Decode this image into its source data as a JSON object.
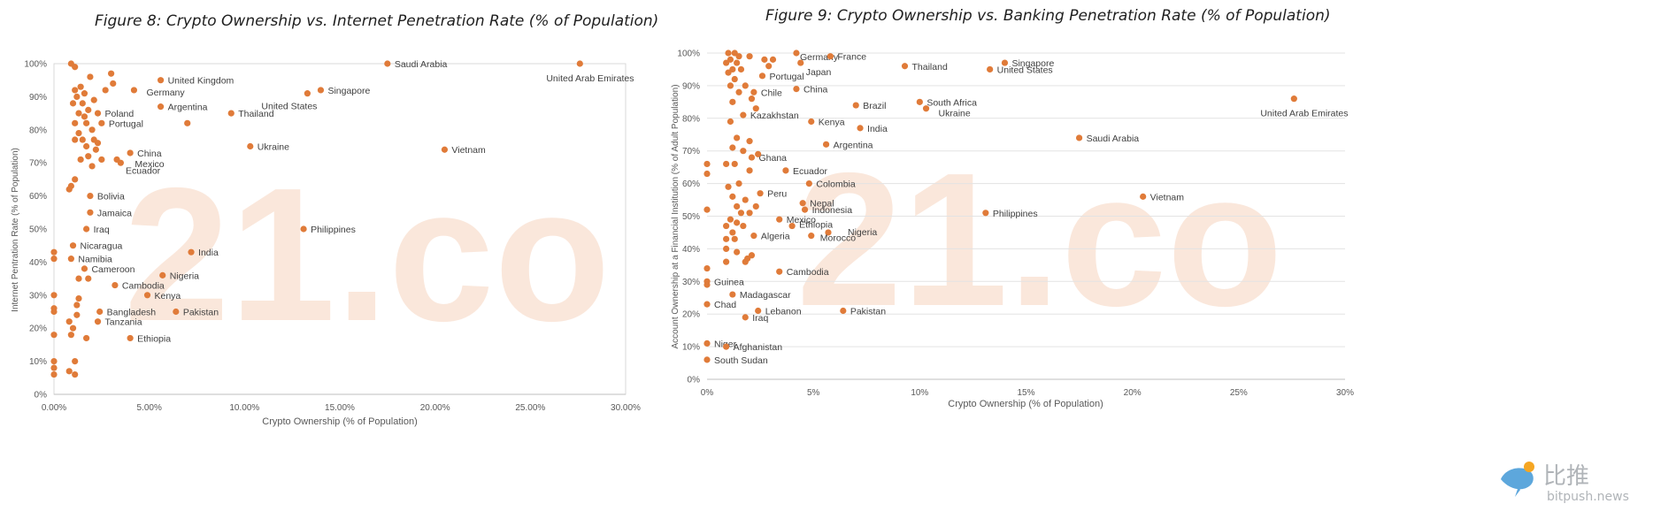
{
  "chart_data": [
    {
      "type": "scatter",
      "title": "Figure 8: Crypto Ownership vs. Internet Penetration Rate (% of Population)",
      "xlabel": "Crypto Ownership (% of Population)",
      "ylabel": "Internet Pentration Rate (% of Population)",
      "xlim": [
        0,
        30
      ],
      "ylim": [
        0,
        100
      ],
      "x_ticks": [
        0,
        5,
        10,
        15,
        20,
        25,
        30
      ],
      "x_tick_labels": [
        "0.00%",
        "5.00%",
        "10.00%",
        "15.00%",
        "20.00%",
        "25.00%",
        "30.00%"
      ],
      "y_ticks": [
        0,
        10,
        20,
        30,
        40,
        50,
        60,
        70,
        80,
        90,
        100
      ],
      "y_tick_labels": [
        "0%",
        "10%",
        "20%",
        "30%",
        "40%",
        "50%",
        "60%",
        "70%",
        "80%",
        "90%",
        "100%"
      ],
      "grid": "none",
      "color": "#e07b39",
      "watermark": "21.co",
      "points": [
        {
          "x": 27.6,
          "y": 100,
          "label": "United Arab Emirates"
        },
        {
          "x": 17.5,
          "y": 100,
          "label": "Saudi Arabia"
        },
        {
          "x": 14.0,
          "y": 92,
          "label": "Singapore"
        },
        {
          "x": 13.3,
          "y": 91,
          "label": "United States"
        },
        {
          "x": 9.3,
          "y": 85,
          "label": "Thailand"
        },
        {
          "x": 5.6,
          "y": 95,
          "label": "United Kingdom"
        },
        {
          "x": 4.2,
          "y": 92,
          "label": "Germany"
        },
        {
          "x": 5.6,
          "y": 87,
          "label": "Argentina"
        },
        {
          "x": 2.3,
          "y": 85,
          "label": "Poland"
        },
        {
          "x": 2.5,
          "y": 82,
          "label": "Portugal"
        },
        {
          "x": 10.3,
          "y": 75,
          "label": "Ukraine"
        },
        {
          "x": 20.5,
          "y": 74,
          "label": "Vietnam"
        },
        {
          "x": 4.0,
          "y": 73,
          "label": "China"
        },
        {
          "x": 3.5,
          "y": 70,
          "label": "Mexico"
        },
        {
          "x": 3.3,
          "y": 71,
          "label": "Ecuador"
        },
        {
          "x": 1.9,
          "y": 60,
          "label": "Bolivia"
        },
        {
          "x": 1.9,
          "y": 55,
          "label": "Jamaica"
        },
        {
          "x": 1.7,
          "y": 50,
          "label": "Iraq"
        },
        {
          "x": 13.1,
          "y": 50,
          "label": "Philippines"
        },
        {
          "x": 1.0,
          "y": 45,
          "label": "Nicaragua"
        },
        {
          "x": 7.2,
          "y": 43,
          "label": "India"
        },
        {
          "x": 0.9,
          "y": 41,
          "label": "Namibia"
        },
        {
          "x": 1.6,
          "y": 38,
          "label": "Cameroon"
        },
        {
          "x": 5.7,
          "y": 36,
          "label": "Nigeria"
        },
        {
          "x": 3.2,
          "y": 33,
          "label": "Cambodia"
        },
        {
          "x": 4.9,
          "y": 30,
          "label": "Kenya"
        },
        {
          "x": 2.4,
          "y": 25,
          "label": "Bangladesh"
        },
        {
          "x": 6.4,
          "y": 25,
          "label": "Pakistan"
        },
        {
          "x": 2.3,
          "y": 22,
          "label": "Tanzania"
        },
        {
          "x": 4.0,
          "y": 17,
          "label": "Ethiopia"
        },
        {
          "x": 0.9,
          "y": 100,
          "label": ""
        },
        {
          "x": 1.1,
          "y": 99,
          "label": ""
        },
        {
          "x": 1.9,
          "y": 96,
          "label": ""
        },
        {
          "x": 3.0,
          "y": 97,
          "label": ""
        },
        {
          "x": 3.1,
          "y": 94,
          "label": ""
        },
        {
          "x": 2.7,
          "y": 92,
          "label": ""
        },
        {
          "x": 1.4,
          "y": 93,
          "label": ""
        },
        {
          "x": 1.1,
          "y": 92,
          "label": ""
        },
        {
          "x": 1.6,
          "y": 91,
          "label": ""
        },
        {
          "x": 1.2,
          "y": 90,
          "label": ""
        },
        {
          "x": 2.1,
          "y": 89,
          "label": ""
        },
        {
          "x": 1.5,
          "y": 88,
          "label": ""
        },
        {
          "x": 1.0,
          "y": 88,
          "label": ""
        },
        {
          "x": 1.8,
          "y": 86,
          "label": ""
        },
        {
          "x": 1.3,
          "y": 85,
          "label": ""
        },
        {
          "x": 1.6,
          "y": 84,
          "label": ""
        },
        {
          "x": 1.1,
          "y": 82,
          "label": ""
        },
        {
          "x": 1.7,
          "y": 82,
          "label": ""
        },
        {
          "x": 2.0,
          "y": 80,
          "label": ""
        },
        {
          "x": 1.3,
          "y": 79,
          "label": ""
        },
        {
          "x": 7.0,
          "y": 82,
          "label": ""
        },
        {
          "x": 1.5,
          "y": 77,
          "label": ""
        },
        {
          "x": 1.1,
          "y": 77,
          "label": ""
        },
        {
          "x": 2.1,
          "y": 77,
          "label": ""
        },
        {
          "x": 2.3,
          "y": 76,
          "label": ""
        },
        {
          "x": 1.7,
          "y": 75,
          "label": ""
        },
        {
          "x": 2.2,
          "y": 74,
          "label": ""
        },
        {
          "x": 1.8,
          "y": 72,
          "label": ""
        },
        {
          "x": 1.4,
          "y": 71,
          "label": ""
        },
        {
          "x": 2.5,
          "y": 71,
          "label": ""
        },
        {
          "x": 2.0,
          "y": 69,
          "label": ""
        },
        {
          "x": 1.1,
          "y": 65,
          "label": ""
        },
        {
          "x": 0.9,
          "y": 63,
          "label": ""
        },
        {
          "x": 0.8,
          "y": 62,
          "label": ""
        },
        {
          "x": 0.0,
          "y": 43,
          "label": ""
        },
        {
          "x": 0.0,
          "y": 41,
          "label": ""
        },
        {
          "x": 1.8,
          "y": 35,
          "label": ""
        },
        {
          "x": 1.3,
          "y": 35,
          "label": ""
        },
        {
          "x": 0.0,
          "y": 30,
          "label": ""
        },
        {
          "x": 1.3,
          "y": 29,
          "label": ""
        },
        {
          "x": 1.2,
          "y": 27,
          "label": ""
        },
        {
          "x": 0.0,
          "y": 26,
          "label": ""
        },
        {
          "x": 0.0,
          "y": 25,
          "label": ""
        },
        {
          "x": 1.2,
          "y": 24,
          "label": ""
        },
        {
          "x": 0.8,
          "y": 22,
          "label": ""
        },
        {
          "x": 1.0,
          "y": 20,
          "label": ""
        },
        {
          "x": 0.0,
          "y": 18,
          "label": ""
        },
        {
          "x": 0.9,
          "y": 18,
          "label": ""
        },
        {
          "x": 1.7,
          "y": 17,
          "label": ""
        },
        {
          "x": 0.0,
          "y": 10,
          "label": ""
        },
        {
          "x": 1.1,
          "y": 10,
          "label": ""
        },
        {
          "x": 0.0,
          "y": 8,
          "label": ""
        },
        {
          "x": 0.8,
          "y": 7,
          "label": ""
        },
        {
          "x": 1.1,
          "y": 6,
          "label": ""
        },
        {
          "x": 0.0,
          "y": 6,
          "label": ""
        }
      ]
    },
    {
      "type": "scatter",
      "title": "Figure 9: Crypto Ownership vs. Banking Penetration Rate (% of Population)",
      "xlabel": "Crypto Ownership (% of Population)",
      "ylabel": "Account Ownership at a Financial Institution (% of Adult Population)",
      "xlim": [
        0,
        30
      ],
      "ylim": [
        0,
        100
      ],
      "x_ticks": [
        0,
        5,
        10,
        15,
        20,
        25,
        30
      ],
      "x_tick_labels": [
        "0%",
        "5%",
        "10%",
        "15%",
        "20%",
        "25%",
        "30%"
      ],
      "y_ticks": [
        0,
        10,
        20,
        30,
        40,
        50,
        60,
        70,
        80,
        90,
        100
      ],
      "y_tick_labels": [
        "0%",
        "10%",
        "20%",
        "30%",
        "40%",
        "50%",
        "60%",
        "70%",
        "80%",
        "90%",
        "100%"
      ],
      "grid": "horizontal",
      "color": "#e07b39",
      "watermark": "21.co",
      "points": [
        {
          "x": 4.2,
          "y": 100,
          "label": "Germany"
        },
        {
          "x": 5.8,
          "y": 99,
          "label": "France"
        },
        {
          "x": 14.0,
          "y": 97,
          "label": "Singapore"
        },
        {
          "x": 13.3,
          "y": 95,
          "label": "United States"
        },
        {
          "x": 9.3,
          "y": 96,
          "label": "Thailand"
        },
        {
          "x": 4.4,
          "y": 97,
          "label": "Japan"
        },
        {
          "x": 2.6,
          "y": 93,
          "label": "Portugal"
        },
        {
          "x": 4.2,
          "y": 89,
          "label": "China"
        },
        {
          "x": 2.2,
          "y": 88,
          "label": "Chile"
        },
        {
          "x": 10.0,
          "y": 85,
          "label": "South Africa"
        },
        {
          "x": 10.3,
          "y": 83,
          "label": "Ukraine"
        },
        {
          "x": 7.0,
          "y": 84,
          "label": "Brazil"
        },
        {
          "x": 27.6,
          "y": 86,
          "label": "United Arab Emirates"
        },
        {
          "x": 1.7,
          "y": 81,
          "label": "Kazakhstan"
        },
        {
          "x": 4.9,
          "y": 79,
          "label": "Kenya"
        },
        {
          "x": 7.2,
          "y": 77,
          "label": "India"
        },
        {
          "x": 17.5,
          "y": 74,
          "label": "Saudi Arabia"
        },
        {
          "x": 5.6,
          "y": 72,
          "label": "Argentina"
        },
        {
          "x": 2.1,
          "y": 68,
          "label": "Ghana"
        },
        {
          "x": 3.7,
          "y": 64,
          "label": "Ecuador"
        },
        {
          "x": 4.8,
          "y": 60,
          "label": "Colombia"
        },
        {
          "x": 2.5,
          "y": 57,
          "label": "Peru"
        },
        {
          "x": 20.5,
          "y": 56,
          "label": "Vietnam"
        },
        {
          "x": 4.5,
          "y": 54,
          "label": "Nepal"
        },
        {
          "x": 4.6,
          "y": 52,
          "label": "Indonesia"
        },
        {
          "x": 13.1,
          "y": 51,
          "label": "Philippines"
        },
        {
          "x": 3.4,
          "y": 49,
          "label": "Mexico"
        },
        {
          "x": 4.0,
          "y": 47,
          "label": "Ethiopia"
        },
        {
          "x": 5.7,
          "y": 45,
          "label": "Nigeria"
        },
        {
          "x": 4.9,
          "y": 44,
          "label": "Morocco"
        },
        {
          "x": 2.2,
          "y": 44,
          "label": "Algeria"
        },
        {
          "x": 3.4,
          "y": 33,
          "label": "Cambodia"
        },
        {
          "x": 0.0,
          "y": 30,
          "label": "Guinea"
        },
        {
          "x": 1.2,
          "y": 26,
          "label": "Madagascar"
        },
        {
          "x": 0.0,
          "y": 23,
          "label": "Chad"
        },
        {
          "x": 2.4,
          "y": 21,
          "label": "Lebanon"
        },
        {
          "x": 6.4,
          "y": 21,
          "label": "Pakistan"
        },
        {
          "x": 1.8,
          "y": 19,
          "label": "Iraq"
        },
        {
          "x": 0.0,
          "y": 11,
          "label": "Niger"
        },
        {
          "x": 0.9,
          "y": 10,
          "label": "Afghanistan"
        },
        {
          "x": 0.0,
          "y": 6,
          "label": "South Sudan"
        },
        {
          "x": 1.0,
          "y": 100,
          "label": ""
        },
        {
          "x": 1.3,
          "y": 100,
          "label": ""
        },
        {
          "x": 1.5,
          "y": 99,
          "label": ""
        },
        {
          "x": 1.1,
          "y": 98,
          "label": ""
        },
        {
          "x": 2.0,
          "y": 99,
          "label": ""
        },
        {
          "x": 2.7,
          "y": 98,
          "label": ""
        },
        {
          "x": 3.1,
          "y": 98,
          "label": ""
        },
        {
          "x": 1.4,
          "y": 97,
          "label": ""
        },
        {
          "x": 0.9,
          "y": 97,
          "label": ""
        },
        {
          "x": 1.2,
          "y": 95,
          "label": ""
        },
        {
          "x": 1.6,
          "y": 95,
          "label": ""
        },
        {
          "x": 2.9,
          "y": 96,
          "label": ""
        },
        {
          "x": 1.0,
          "y": 94,
          "label": ""
        },
        {
          "x": 1.3,
          "y": 92,
          "label": ""
        },
        {
          "x": 1.1,
          "y": 90,
          "label": ""
        },
        {
          "x": 1.8,
          "y": 90,
          "label": ""
        },
        {
          "x": 1.5,
          "y": 88,
          "label": ""
        },
        {
          "x": 2.1,
          "y": 86,
          "label": ""
        },
        {
          "x": 1.2,
          "y": 85,
          "label": ""
        },
        {
          "x": 2.3,
          "y": 83,
          "label": ""
        },
        {
          "x": 1.1,
          "y": 79,
          "label": ""
        },
        {
          "x": 1.4,
          "y": 74,
          "label": ""
        },
        {
          "x": 2.0,
          "y": 73,
          "label": ""
        },
        {
          "x": 1.2,
          "y": 71,
          "label": ""
        },
        {
          "x": 1.7,
          "y": 70,
          "label": ""
        },
        {
          "x": 2.4,
          "y": 69,
          "label": ""
        },
        {
          "x": 0.9,
          "y": 66,
          "label": ""
        },
        {
          "x": 1.3,
          "y": 66,
          "label": ""
        },
        {
          "x": 0.0,
          "y": 66,
          "label": ""
        },
        {
          "x": 0.0,
          "y": 63,
          "label": ""
        },
        {
          "x": 2.0,
          "y": 64,
          "label": ""
        },
        {
          "x": 1.5,
          "y": 60,
          "label": ""
        },
        {
          "x": 1.0,
          "y": 59,
          "label": ""
        },
        {
          "x": 1.2,
          "y": 56,
          "label": ""
        },
        {
          "x": 1.8,
          "y": 55,
          "label": ""
        },
        {
          "x": 1.4,
          "y": 53,
          "label": ""
        },
        {
          "x": 2.3,
          "y": 53,
          "label": ""
        },
        {
          "x": 0.0,
          "y": 52,
          "label": ""
        },
        {
          "x": 1.6,
          "y": 51,
          "label": ""
        },
        {
          "x": 2.0,
          "y": 51,
          "label": ""
        },
        {
          "x": 1.1,
          "y": 49,
          "label": ""
        },
        {
          "x": 1.4,
          "y": 48,
          "label": ""
        },
        {
          "x": 0.9,
          "y": 47,
          "label": ""
        },
        {
          "x": 1.7,
          "y": 47,
          "label": ""
        },
        {
          "x": 1.2,
          "y": 45,
          "label": ""
        },
        {
          "x": 0.9,
          "y": 43,
          "label": ""
        },
        {
          "x": 1.3,
          "y": 43,
          "label": ""
        },
        {
          "x": 0.9,
          "y": 40,
          "label": ""
        },
        {
          "x": 1.4,
          "y": 39,
          "label": ""
        },
        {
          "x": 2.1,
          "y": 38,
          "label": ""
        },
        {
          "x": 1.9,
          "y": 37,
          "label": ""
        },
        {
          "x": 0.9,
          "y": 36,
          "label": ""
        },
        {
          "x": 1.8,
          "y": 36,
          "label": ""
        },
        {
          "x": 0.0,
          "y": 34,
          "label": ""
        },
        {
          "x": 0.0,
          "y": 29,
          "label": ""
        }
      ]
    }
  ],
  "branding": {
    "name_cn": "比推",
    "domain": "bitpush.news"
  }
}
